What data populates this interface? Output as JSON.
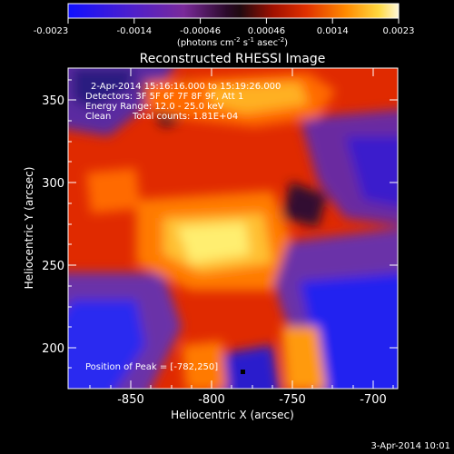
{
  "colorbar": {
    "ticks": [
      "-0.0023",
      "-0.0014",
      "-0.00046",
      "0.00046",
      "0.0014",
      "0.0023"
    ],
    "unit_prefix": "(photons cm",
    "unit_exp1": "-2",
    "unit_mid": " s",
    "unit_exp2": "-1",
    "unit_mid2": " asec",
    "unit_exp3": "-2",
    "unit_suffix": ")"
  },
  "title": "Reconstructed RHESSI Image",
  "annotations": {
    "time_range": "2-Apr-2014 15:16:16.000 to 15:19:26.000",
    "detectors": "Detectors: 3F 5F 6F 7F 8F 9F, Att 1",
    "energy": "Energy Range: 12.0 - 25.0 keV",
    "method": "Clean",
    "counts": "Total counts: 1.81E+04",
    "peak": "Position of Peak = [-782,250]"
  },
  "axes": {
    "xlabel": "Heliocentric X (arcsec)",
    "ylabel": "Heliocentric Y (arcsec)",
    "xticks": [
      "-850",
      "-800",
      "-750",
      "-700"
    ],
    "yticks": [
      "200",
      "250",
      "300",
      "350"
    ]
  },
  "footer_timestamp": "3-Apr-2014 10:01",
  "colors": {
    "blue": "#1a1aff",
    "purple": "#6a2aa8",
    "dark": "#2a0a3a",
    "red": "#e01a00",
    "orange": "#ff7a00",
    "yellow": "#ffe23a",
    "white": "#fffbd0"
  }
}
